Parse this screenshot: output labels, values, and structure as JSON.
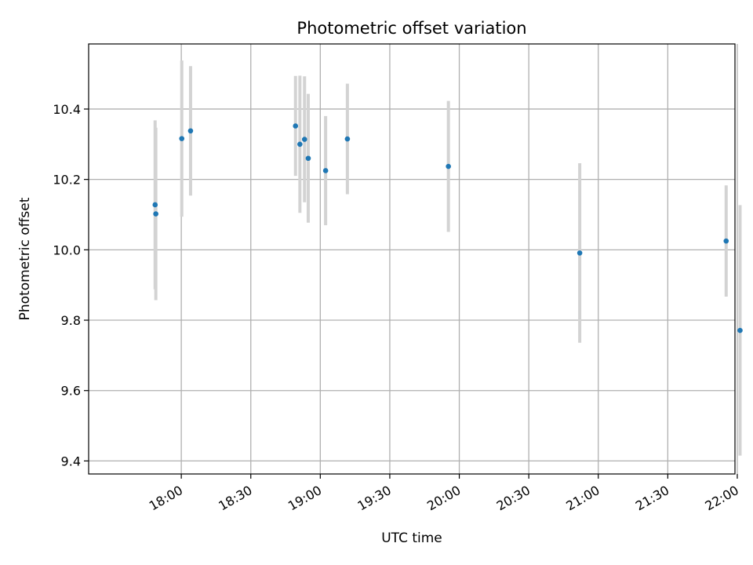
{
  "chart_data": {
    "type": "scatter",
    "title": "Photometric offset variation",
    "xlabel": "UTC time",
    "ylabel": "Photometric offset",
    "xlim_minutes": [
      1040,
      1319
    ],
    "ylim": [
      9.363,
      10.585
    ],
    "grid": true,
    "x_ticks": [
      {
        "minutes": 1080,
        "label": "18:00"
      },
      {
        "minutes": 1110,
        "label": "18:30"
      },
      {
        "minutes": 1140,
        "label": "19:00"
      },
      {
        "minutes": 1170,
        "label": "19:30"
      },
      {
        "minutes": 1200,
        "label": "20:00"
      },
      {
        "minutes": 1230,
        "label": "20:30"
      },
      {
        "minutes": 1260,
        "label": "21:00"
      },
      {
        "minutes": 1290,
        "label": "21:30"
      },
      {
        "minutes": 1320,
        "label": "22:00"
      }
    ],
    "y_ticks": [
      {
        "value": 9.4,
        "label": "9.4"
      },
      {
        "value": 9.6,
        "label": "9.6"
      },
      {
        "value": 9.8,
        "label": "9.8"
      },
      {
        "value": 10.0,
        "label": "10.0"
      },
      {
        "value": 10.2,
        "label": "10.2"
      },
      {
        "value": 10.4,
        "label": "10.4"
      }
    ],
    "points": [
      {
        "time": "17:48:40",
        "minutes": 1068.7,
        "value": 10.128,
        "err": 0.24
      },
      {
        "time": "17:49:00",
        "minutes": 1069.0,
        "value": 10.102,
        "err": 0.245
      },
      {
        "time": "18:00:10",
        "minutes": 1080.2,
        "value": 10.316,
        "err": 0.222
      },
      {
        "time": "18:04:00",
        "minutes": 1084.0,
        "value": 10.338,
        "err": 0.184
      },
      {
        "time": "18:49:20",
        "minutes": 1129.3,
        "value": 10.352,
        "err": 0.142
      },
      {
        "time": "18:51:10",
        "minutes": 1131.2,
        "value": 10.3,
        "err": 0.195
      },
      {
        "time": "18:53:10",
        "minutes": 1133.2,
        "value": 10.314,
        "err": 0.179
      },
      {
        "time": "18:54:50",
        "minutes": 1134.8,
        "value": 10.26,
        "err": 0.183
      },
      {
        "time": "19:02:20",
        "minutes": 1142.3,
        "value": 10.225,
        "err": 0.155
      },
      {
        "time": "19:11:40",
        "minutes": 1151.7,
        "value": 10.315,
        "err": 0.157
      },
      {
        "time": "19:55:20",
        "minutes": 1195.3,
        "value": 10.237,
        "err": 0.186
      },
      {
        "time": "20:52:00",
        "minutes": 1252.0,
        "value": 9.991,
        "err": 0.255
      },
      {
        "time": "21:55:10",
        "minutes": 1315.2,
        "value": 10.025,
        "err": 0.158
      },
      {
        "time": "22:01:10",
        "minutes": 1321.2,
        "value": 9.771,
        "err": 0.356
      }
    ],
    "marker_color": "#1f77b4",
    "errorbar_color": "#d3d3d3",
    "grid_color": "#b0b0b0"
  }
}
